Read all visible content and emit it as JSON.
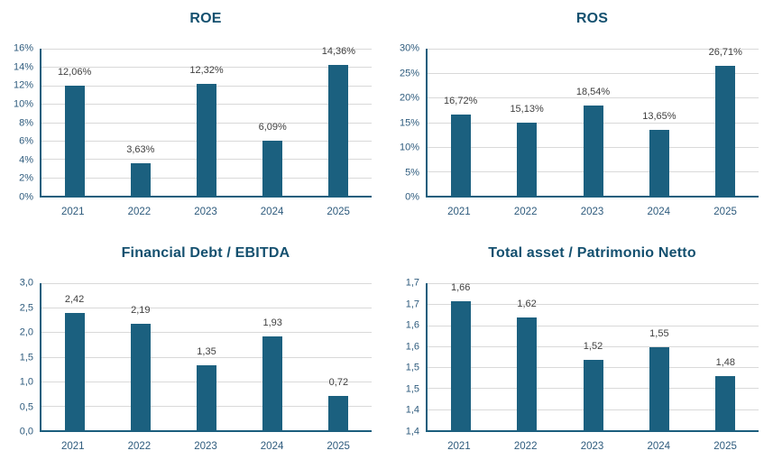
{
  "page": {
    "background": "#FFFFFF",
    "layout": "2x2-grid-of-bar-charts"
  },
  "colors": {
    "bar_fill": "#1B607F",
    "axis_line": "#1B5E7D",
    "gridline": "#D9D9D9",
    "title_text": "#14506F",
    "axis_tick_text": "#2E5B7D",
    "data_label_text": "#404040"
  },
  "chart_data": [
    {
      "type": "bar",
      "title": "ROE",
      "categories": [
        "2021",
        "2022",
        "2023",
        "2024",
        "2025"
      ],
      "values": [
        12.06,
        3.63,
        12.32,
        6.09,
        14.36
      ],
      "value_labels": [
        "12,06%",
        "3,63%",
        "12,32%",
        "6,09%",
        "14,36%"
      ],
      "y_ticks_top_to_bottom": [
        "16%",
        "14%",
        "12%",
        "10%",
        "8%",
        "6%",
        "4%",
        "2%",
        "0%"
      ],
      "ylim": [
        0,
        16
      ],
      "xlabel": "",
      "ylabel": "",
      "grid": true,
      "legend": "none"
    },
    {
      "type": "bar",
      "title": "ROS",
      "categories": [
        "2021",
        "2022",
        "2023",
        "2024",
        "2025"
      ],
      "values": [
        16.72,
        15.13,
        18.54,
        13.65,
        26.71
      ],
      "value_labels": [
        "16,72%",
        "15,13%",
        "18,54%",
        "13,65%",
        "26,71%"
      ],
      "y_ticks_top_to_bottom": [
        "30%",
        "25%",
        "20%",
        "15%",
        "10%",
        "5%",
        "0%"
      ],
      "ylim": [
        0,
        30
      ],
      "xlabel": "",
      "ylabel": "",
      "grid": true,
      "legend": "none"
    },
    {
      "type": "bar",
      "title": "Financial Debt / EBITDA",
      "categories": [
        "2021",
        "2022",
        "2023",
        "2024",
        "2025"
      ],
      "values": [
        2.42,
        2.19,
        1.35,
        1.93,
        0.72
      ],
      "value_labels": [
        "2,42",
        "2,19",
        "1,35",
        "1,93",
        "0,72"
      ],
      "y_ticks_top_to_bottom": [
        "3,0",
        "2,5",
        "2,0",
        "1,5",
        "1,0",
        "0,5",
        "0,0"
      ],
      "ylim": [
        0,
        3
      ],
      "xlabel": "",
      "ylabel": "",
      "grid": true,
      "legend": "none"
    },
    {
      "type": "bar",
      "title": "Total asset /  Patrimonio Netto",
      "categories": [
        "2021",
        "2022",
        "2023",
        "2024",
        "2025"
      ],
      "values": [
        1.66,
        1.62,
        1.52,
        1.55,
        1.48
      ],
      "value_labels": [
        "1,66",
        "1,62",
        "1,52",
        "1,55",
        "1,48"
      ],
      "y_ticks_top_to_bottom": [
        "1,7",
        "1,7",
        "1,6",
        "1,6",
        "1,5",
        "1,5",
        "1,4",
        "1,4"
      ],
      "ylim": [
        1.35,
        1.7
      ],
      "xlabel": "",
      "ylabel": "",
      "grid": true,
      "legend": "none"
    }
  ]
}
